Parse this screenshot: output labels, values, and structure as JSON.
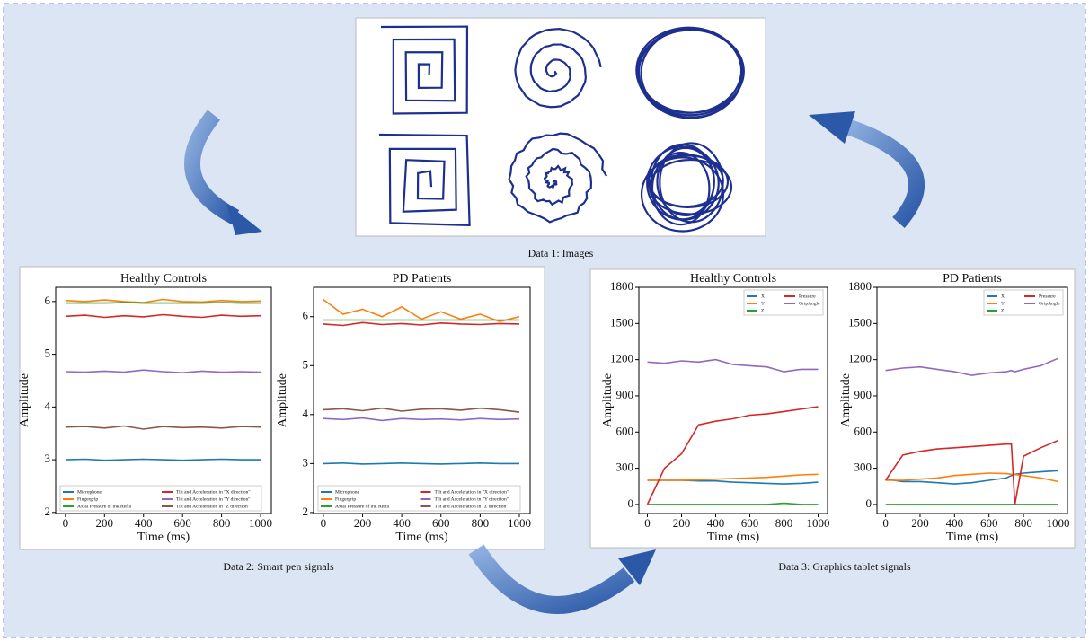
{
  "captions": [
    "Data 1: Images",
    "Data 2: Smart pen signals",
    "Data 3: Graphics tablet signals"
  ],
  "charts": [
    {
      "type": "line",
      "title": "Healthy Controls",
      "x_label": "Time (ms)",
      "y_label": "Amplitude",
      "legend": "lower center",
      "x": [
        0,
        100,
        200,
        300,
        400,
        500,
        600,
        700,
        800,
        900,
        1000
      ],
      "xlim": [
        -50,
        1055
      ],
      "xticks": [
        0,
        200,
        400,
        600,
        800,
        1000
      ],
      "ylim": [
        1.98,
        6.27
      ],
      "yticks": [
        2,
        3,
        4,
        5,
        6
      ],
      "series": [
        {
          "name": "Microphone",
          "color": "#1f77b4",
          "values": [
            3.0,
            3.01,
            2.99,
            3.0,
            3.01,
            3.0,
            2.99,
            3.0,
            3.01,
            3.0,
            3.0
          ]
        },
        {
          "name": "Fingergrip",
          "color": "#ff7f0e",
          "values": [
            6.02,
            6.0,
            6.03,
            6.0,
            5.98,
            6.04,
            6.0,
            5.99,
            6.02,
            6.0,
            6.01
          ]
        },
        {
          "name": "Axial Pressure of ink Refill",
          "color": "#2ca02c",
          "values": [
            5.97,
            5.97,
            5.97,
            5.98,
            5.97,
            5.97,
            5.97,
            5.97,
            5.98,
            5.97,
            5.97
          ]
        },
        {
          "name": "Tilt and Acceleration in \"X direction\"",
          "color": "#d62728",
          "values": [
            5.72,
            5.74,
            5.7,
            5.73,
            5.71,
            5.75,
            5.72,
            5.7,
            5.74,
            5.72,
            5.73
          ]
        },
        {
          "name": "Tilt and Acceleration in \"Y direction\"",
          "color": "#9467bd",
          "values": [
            4.67,
            4.66,
            4.68,
            4.66,
            4.7,
            4.67,
            4.65,
            4.68,
            4.66,
            4.67,
            4.66
          ]
        },
        {
          "name": "Tilt and Acceleration in \"Z direction\"",
          "color": "#8c564b",
          "values": [
            3.62,
            3.63,
            3.6,
            3.64,
            3.58,
            3.63,
            3.61,
            3.62,
            3.6,
            3.63,
            3.62
          ]
        }
      ]
    },
    {
      "type": "line",
      "title": "PD Patients",
      "x_label": "Time (ms)",
      "y_label": "Amplitude",
      "legend": "lower center",
      "x": [
        0,
        100,
        200,
        300,
        400,
        500,
        600,
        700,
        800,
        900,
        1000
      ],
      "xlim": [
        -50,
        1055
      ],
      "xticks": [
        0,
        200,
        400,
        600,
        800,
        1000
      ],
      "ylim": [
        1.98,
        6.6
      ],
      "yticks": [
        2,
        3,
        4,
        5,
        6
      ],
      "series": [
        {
          "name": "Microphone",
          "color": "#1f77b4",
          "values": [
            3.0,
            3.01,
            2.99,
            3.0,
            3.01,
            3.0,
            2.99,
            3.0,
            3.01,
            3.0,
            3.0
          ]
        },
        {
          "name": "Fingergrip",
          "color": "#ff7f0e",
          "values": [
            6.35,
            6.05,
            6.15,
            6.0,
            6.2,
            5.95,
            6.1,
            5.95,
            6.05,
            5.9,
            6.0
          ]
        },
        {
          "name": "Axial Pressure of ink Refill",
          "color": "#2ca02c",
          "values": [
            5.93,
            5.93,
            5.93,
            5.93,
            5.93,
            5.93,
            5.93,
            5.93,
            5.93,
            5.93,
            5.93
          ]
        },
        {
          "name": "Tilt and Acceleration in \"X direction\"",
          "color": "#d62728",
          "values": [
            5.85,
            5.82,
            5.88,
            5.84,
            5.86,
            5.83,
            5.87,
            5.85,
            5.84,
            5.86,
            5.85
          ]
        },
        {
          "name": "Tilt and Acceleration in \"Y direction\"",
          "color": "#9467bd",
          "values": [
            3.92,
            3.9,
            3.93,
            3.88,
            3.92,
            3.9,
            3.91,
            3.89,
            3.92,
            3.9,
            3.91
          ]
        },
        {
          "name": "Tilt and Acceleration in \"Z direction\"",
          "color": "#8c564b",
          "values": [
            4.1,
            4.12,
            4.08,
            4.13,
            4.07,
            4.11,
            4.12,
            4.09,
            4.13,
            4.1,
            4.05
          ]
        }
      ]
    },
    {
      "type": "line",
      "title": "Healthy Controls",
      "x_label": "Time (ms)",
      "y_label": "Amplitude",
      "legend": "upper right",
      "x": [
        0,
        100,
        200,
        300,
        400,
        500,
        600,
        700,
        800,
        900,
        1000
      ],
      "xlim": [
        -50,
        1055
      ],
      "xticks": [
        0,
        200,
        400,
        600,
        800,
        1000
      ],
      "ylim": [
        -75,
        1800
      ],
      "yticks": [
        0,
        300,
        600,
        900,
        1200,
        1500,
        1800
      ],
      "series": [
        {
          "name": "X",
          "color": "#1f77b4",
          "values": [
            200,
            200,
            200,
            195,
            195,
            185,
            180,
            175,
            170,
            175,
            185
          ]
        },
        {
          "name": "Y",
          "color": "#ff7f0e",
          "values": [
            200,
            200,
            200,
            205,
            210,
            215,
            220,
            225,
            235,
            245,
            250
          ]
        },
        {
          "name": "Z",
          "color": "#2ca02c",
          "values": [
            0,
            0,
            0,
            0,
            0,
            0,
            0,
            0,
            10,
            0,
            0
          ]
        },
        {
          "name": "Pressure",
          "color": "#d62728",
          "values": [
            0,
            300,
            420,
            660,
            690,
            710,
            740,
            750,
            770,
            790,
            810
          ]
        },
        {
          "name": "GripAngle",
          "color": "#9467bd",
          "values": [
            1180,
            1170,
            1190,
            1180,
            1200,
            1160,
            1150,
            1140,
            1100,
            1120,
            1120
          ]
        }
      ]
    },
    {
      "type": "line",
      "title": "PD Patients",
      "x_label": "Time (ms)",
      "y_label": "Amplitude",
      "legend": "upper right",
      "x": [
        0,
        100,
        200,
        300,
        400,
        500,
        600,
        700,
        730,
        750,
        800,
        900,
        1000
      ],
      "xlim": [
        -50,
        1055
      ],
      "xticks": [
        0,
        200,
        400,
        600,
        800,
        1000
      ],
      "ylim": [
        -75,
        1800
      ],
      "yticks": [
        0,
        300,
        600,
        900,
        1200,
        1500,
        1800
      ],
      "series": [
        {
          "name": "X",
          "color": "#1f77b4",
          "values": [
            210,
            190,
            190,
            180,
            170,
            180,
            200,
            220,
            240,
            250,
            260,
            270,
            280
          ]
        },
        {
          "name": "Y",
          "color": "#ff7f0e",
          "values": [
            200,
            200,
            210,
            220,
            240,
            250,
            260,
            255,
            250,
            248,
            240,
            220,
            190
          ]
        },
        {
          "name": "Z",
          "color": "#2ca02c",
          "values": [
            0,
            0,
            0,
            0,
            0,
            0,
            0,
            0,
            0,
            0,
            0,
            0,
            0
          ]
        },
        {
          "name": "Pressure",
          "color": "#d62728",
          "values": [
            200,
            410,
            440,
            460,
            470,
            480,
            490,
            500,
            500,
            0,
            400,
            470,
            530
          ]
        },
        {
          "name": "GripAngle",
          "color": "#9467bd",
          "values": [
            1110,
            1130,
            1140,
            1120,
            1100,
            1070,
            1090,
            1100,
            1110,
            1100,
            1120,
            1150,
            1210
          ]
        }
      ]
    }
  ]
}
